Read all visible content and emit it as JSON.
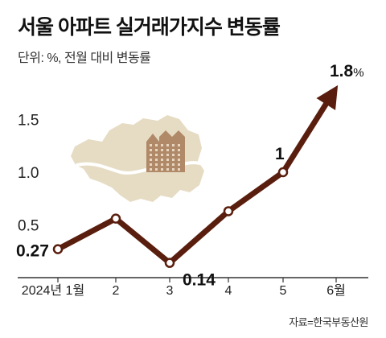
{
  "header": {
    "title": "서울 아파트 실거래가지수 변동률",
    "subtitle": "단위: %, 전월 대비 변동률"
  },
  "footer": {
    "source": "자료=한국부동산원"
  },
  "colors": {
    "line": "#5a1e0e",
    "map": "#e6dcc4",
    "building": "#b08969",
    "axis": "#333333"
  },
  "illustration": {
    "map_icon": "seoul-map-icon",
    "building_icon": "apartment-building-icon"
  },
  "chart_data": {
    "type": "line",
    "title": "서울 아파트 실거래가지수 변동률",
    "subtitle": "단위: %, 전월 대비 변동률",
    "categories": [
      "2024년 1월",
      "2",
      "3",
      "4",
      "5",
      "6월"
    ],
    "values": [
      0.27,
      0.56,
      0.14,
      0.63,
      1.0,
      1.8
    ],
    "data_labels": [
      {
        "index": 0,
        "text": "0.27"
      },
      {
        "index": 2,
        "text": "0.14"
      },
      {
        "index": 4,
        "text": "1"
      },
      {
        "index": 5,
        "text": "1.8",
        "unit": "%"
      }
    ],
    "yticks": [
      "0.5",
      "1.0",
      "1.5"
    ],
    "ytick_values": [
      0.5,
      1.0,
      1.5
    ],
    "ylim": [
      0,
      2.0
    ],
    "grid": false,
    "legend": "none",
    "last_point_arrow": true
  }
}
